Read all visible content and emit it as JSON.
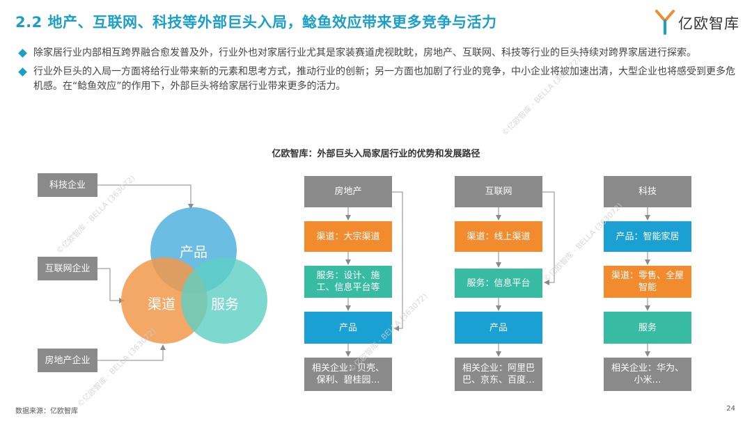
{
  "header": {
    "title": "2.2 地产、互联网、科技等外部巨头入局，鲶鱼效应带来更多竞争与活力",
    "logo_text": "亿欧智库"
  },
  "bullets": [
    "除家居行业内部相互跨界融合愈发普及外，行业外也对家居行业尤其是家装赛道虎视眈眈，房地产、互联网、科技等行业的巨头持续对跨界家居进行探索。",
    "行业外巨头的入局一方面将给行业带来新的元素和思考方式，推动行业的创新；另一方面也加剧了行业的竞争，中小企业将被加速出清，大型企业也将感受到更多危机感。在“鲶鱼效应”的作用下，外部巨头将给家居行业带来更多的活力。"
  ],
  "diagram_title": "亿欧智库：外部巨头入局家居行业的优势和发展路径",
  "venn": {
    "inputs": [
      "科技企业",
      "互联网企业",
      "房地产企业"
    ],
    "circles": [
      "产品",
      "渠道",
      "服务"
    ]
  },
  "paths": [
    {
      "header": "房地产",
      "steps": [
        "渠道：大宗渠道",
        "服务：设计、施工、信息平台等",
        "产品"
      ],
      "companies": "相关企业：贝壳、保利、碧桂园…"
    },
    {
      "header": "互联网",
      "steps": [
        "渠道：线上渠道",
        "服务：信息平台",
        "产品"
      ],
      "companies": "相关企业：阿里巴巴、京东、百度…"
    },
    {
      "header": "科技",
      "steps": [
        "产品：智能家居",
        "渠道：零售、全屋智能",
        "服务"
      ],
      "companies": "相关企业：华为、小米…"
    }
  ],
  "watermark": "©亿欧智库 · BELLA (363072)",
  "footer": {
    "source": "数据来源：亿欧智库",
    "page": "24"
  },
  "colors": {
    "accent": "#1aa0c8",
    "gray_box": "#8a8a8a",
    "orange": "#f28a2e",
    "green": "#38bba3",
    "blue": "#1aa0d2",
    "circle_product": "#5cb6e0",
    "circle_channel": "#f2994a",
    "circle_service": "#5ccfc4"
  }
}
